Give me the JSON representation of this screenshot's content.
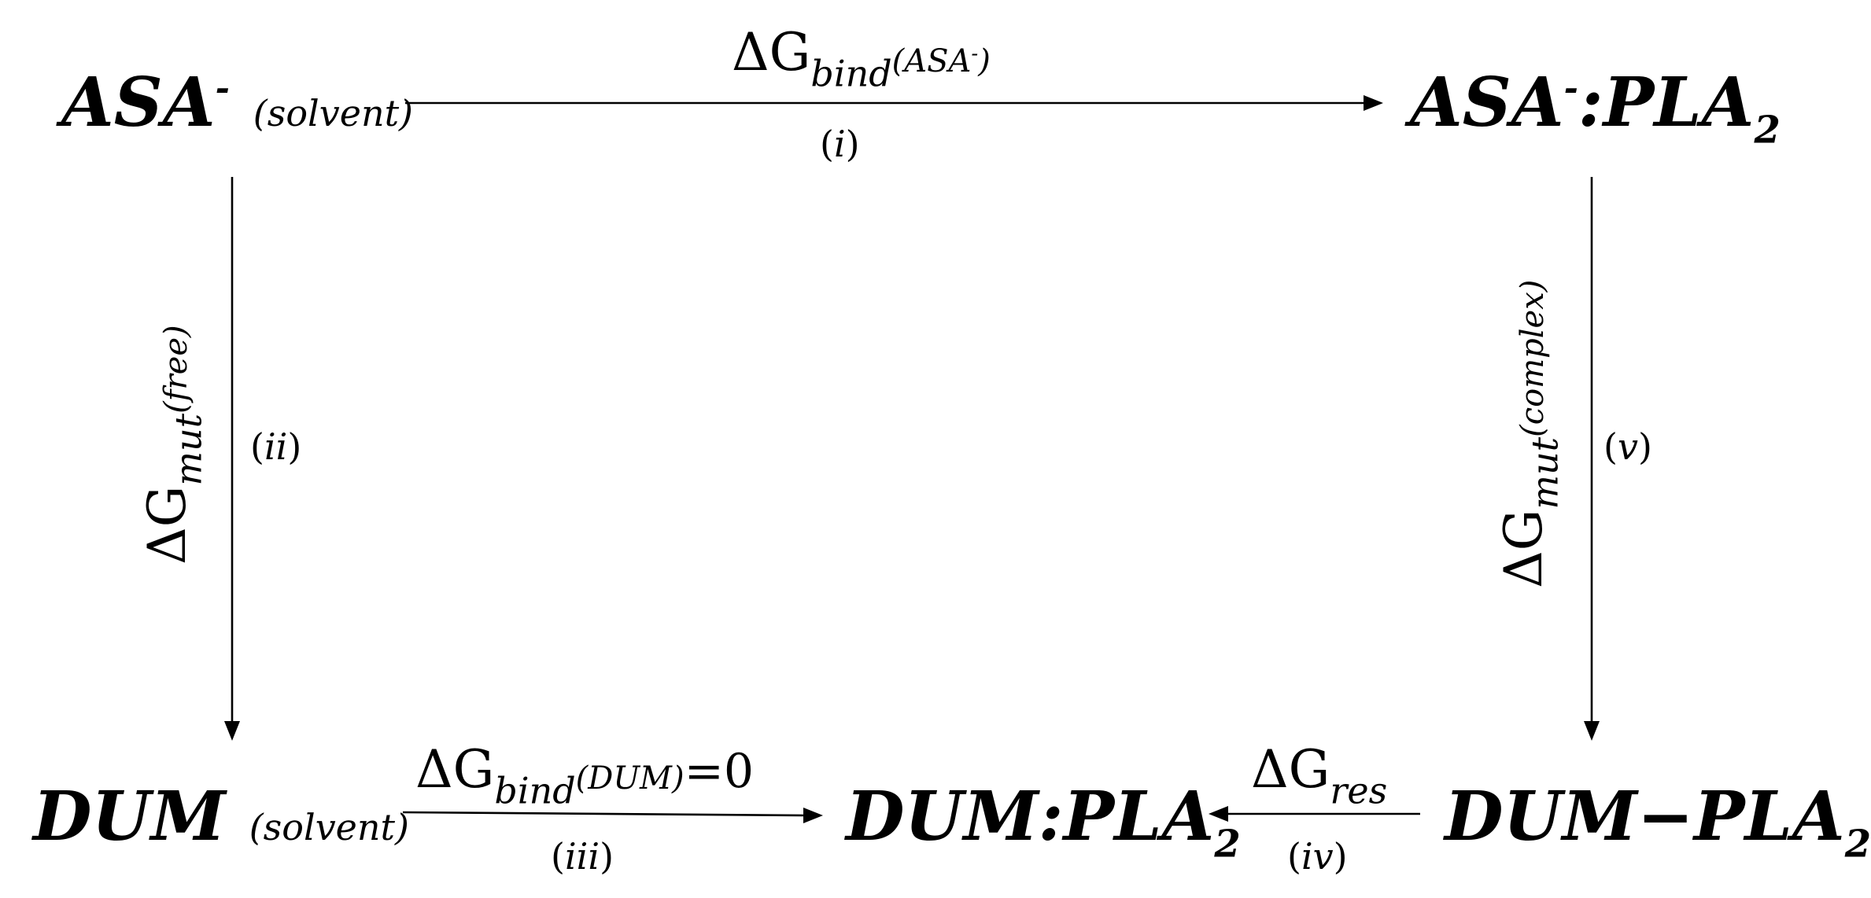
{
  "nodes": {
    "asa_solvent": {
      "main": "ASA",
      "charge": "-",
      "phase": "(solvent)"
    },
    "asa_pla2": {
      "main": "ASA",
      "charge": "-",
      "sep": ":",
      "partner": "PLA",
      "sub": "2"
    },
    "dum_solvent": {
      "main": "DUM",
      "phase": "(solvent)"
    },
    "dum_pla2": {
      "main": "DUM:PLA",
      "sub": "2"
    },
    "dum_pla2_bonded": {
      "main": "DUM",
      "bond": "−",
      "partner": "PLA",
      "sub": "2"
    }
  },
  "edges": {
    "i": {
      "delta": "Δ",
      "g": "G",
      "sub": "bind",
      "cond": "(ASA",
      "cond_sup": "-",
      "cond_close": ")",
      "step": "i"
    },
    "ii": {
      "delta": "Δ",
      "g": "G",
      "sub": "mut",
      "cond": "(free)",
      "step": "ii"
    },
    "iii": {
      "delta": "Δ",
      "g": "G",
      "sub": "bind",
      "cond": "(DUM)",
      "eq": "=0",
      "step": "iii"
    },
    "iv": {
      "delta": "Δ",
      "g": "G",
      "sub": "res",
      "step": "iv"
    },
    "v": {
      "delta": "Δ",
      "g": "G",
      "sub": "mut",
      "cond": "(complex)",
      "step": "v"
    }
  }
}
